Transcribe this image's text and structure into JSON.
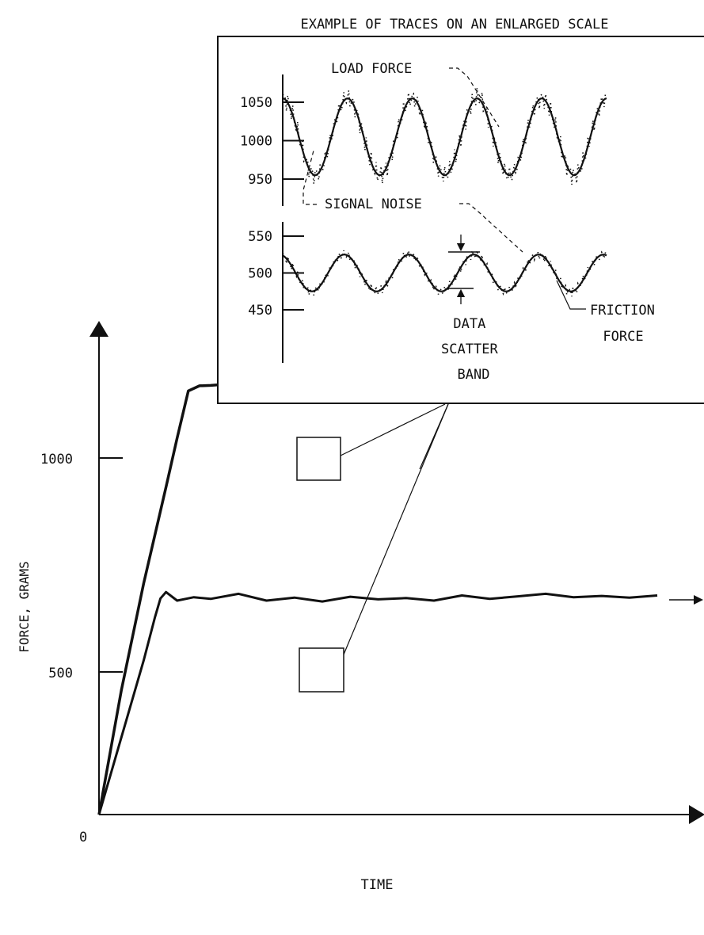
{
  "chart_data": [
    {
      "type": "line",
      "xlabel": "TIME",
      "ylabel": "FORCE, GRAMS",
      "origin_label": "0",
      "ylim": [
        0,
        1170
      ],
      "y_ticks": [
        {
          "value": 500,
          "label": "500"
        },
        {
          "value": 1000,
          "label": "1000"
        }
      ],
      "series": [
        {
          "x": [
            0,
            0.4,
            0.8,
            1.2,
            1.4,
            1.6,
            1.8,
            2,
            2.5,
            3,
            3.5,
            4,
            4.5,
            5,
            5.5,
            6,
            6.5,
            7,
            7.5,
            8,
            8.5,
            9,
            9.5,
            10
          ],
          "y": [
            0,
            290,
            540,
            765,
            880,
            990,
            1002,
            1003,
            1008,
            1001,
            1006,
            998,
            1010,
            1004,
            1000,
            1012,
            1005,
            1003,
            1012,
            1008,
            1014,
            1006,
            1010,
            1016
          ]
        },
        {
          "x": [
            0,
            0.4,
            0.8,
            1.0,
            1.1,
            1.2,
            1.4,
            1.7,
            2,
            2.5,
            3,
            3.5,
            4,
            4.5,
            5,
            5.5,
            6,
            6.5,
            7,
            7.5,
            8,
            8.5,
            9,
            9.5,
            10
          ],
          "y": [
            0,
            180,
            360,
            460,
            505,
            520,
            500,
            508,
            504,
            516,
            500,
            507,
            498,
            509,
            503,
            506,
            500,
            512,
            504,
            510,
            516,
            508,
            511,
            507,
            512
          ]
        }
      ]
    },
    {
      "type": "line",
      "title": "EXAMPLE OF TRACES ON AN ENLARGED SCALE",
      "ylim": [
        410,
        1110
      ],
      "y_ticks": [
        {
          "value": 1050,
          "label": "1050"
        },
        {
          "value": 1000,
          "label": "1000"
        },
        {
          "value": 950,
          "label": "950"
        },
        {
          "value": 550,
          "label": "550"
        },
        {
          "value": 500,
          "label": "500"
        },
        {
          "value": 450,
          "label": "450"
        }
      ],
      "series": [
        {
          "name": "LOAD FORCE",
          "mean": 1005,
          "amplitude": 50,
          "cycles": 5,
          "phase": 0.25
        },
        {
          "name": "FRICTION FORCE",
          "mean": 500,
          "amplitude": 25,
          "cycles": 5,
          "phase": 0.3
        }
      ],
      "annotations": [
        "SIGNAL NOISE",
        "DATA SCATTER BAND"
      ]
    }
  ]
}
